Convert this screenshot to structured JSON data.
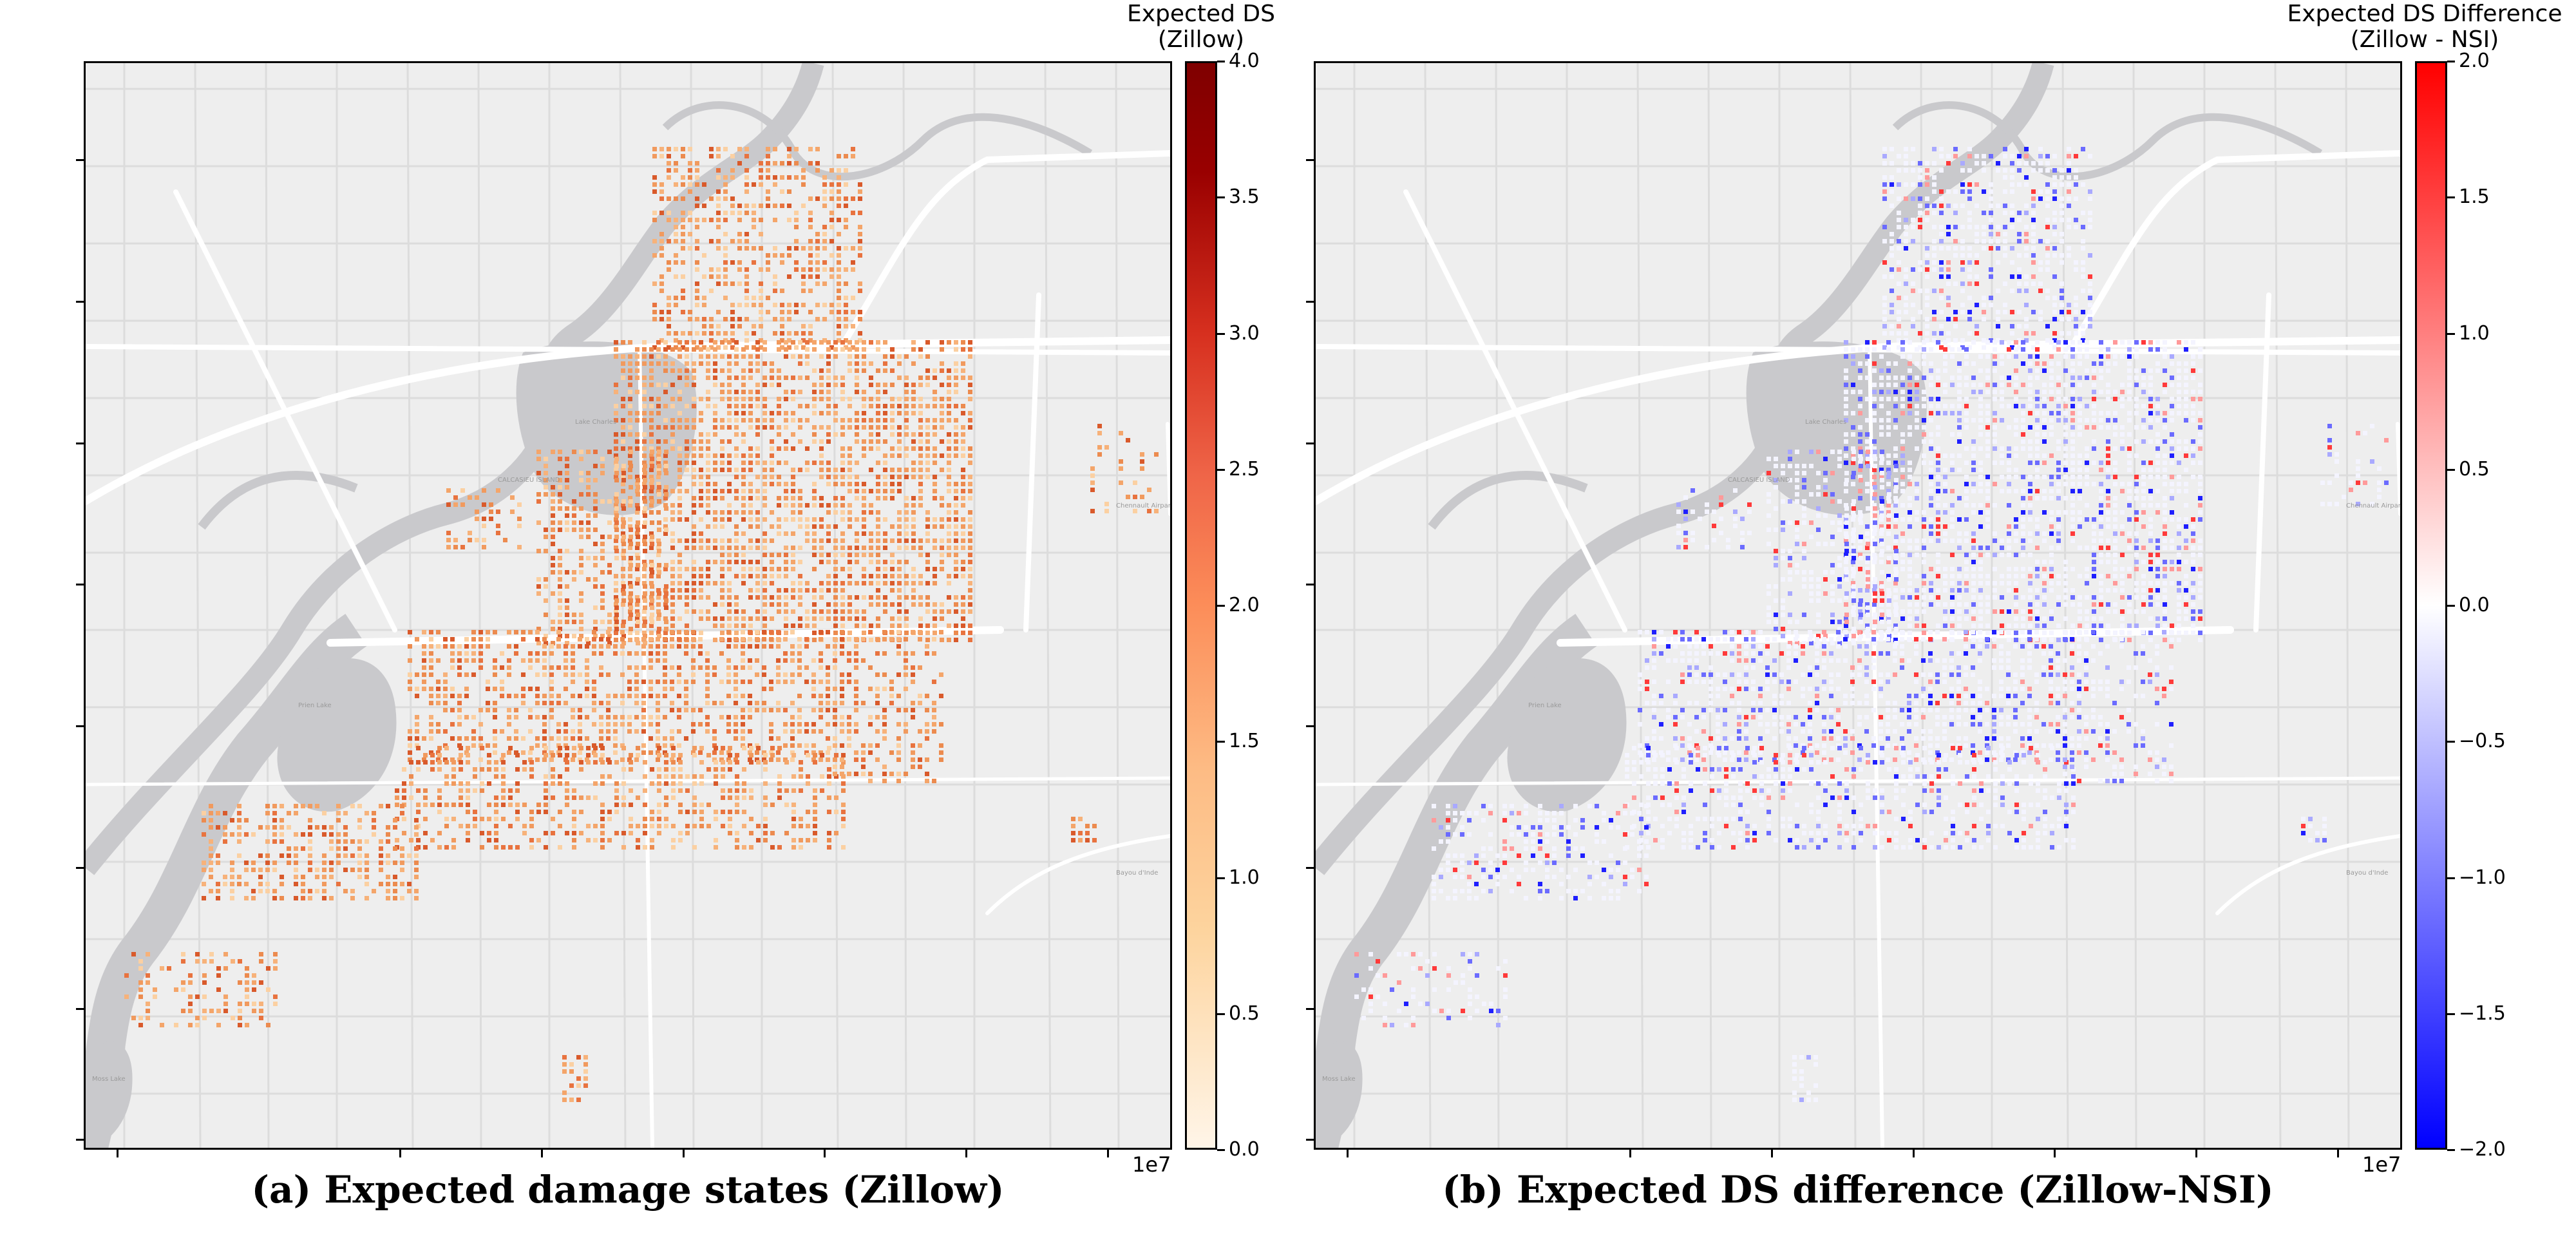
{
  "panels": [
    {
      "caption": "(a) Expected damage states (Zillow)",
      "colorbar_title_line1": "Expected DS",
      "colorbar_title_line2": "(Zillow)",
      "colorbar_ticks": [
        "4.0",
        "3.5",
        "3.0",
        "2.5",
        "2.0",
        "1.5",
        "1.0",
        "0.5",
        "0.0"
      ],
      "colorbar_range": [
        0,
        4
      ],
      "colorscale": [
        "#fff5e8",
        "#fdd49e",
        "#fdbb84",
        "#fc8d59",
        "#ef6548",
        "#d7301f",
        "#990000",
        "#7f0000"
      ],
      "axis_offset": "1e7",
      "dominant_color": "#f19a5e"
    },
    {
      "caption": "(b) Expected DS difference (Zillow-NSI)",
      "colorbar_title_line1": "Expected DS Difference",
      "colorbar_title_line2": "(Zillow - NSI)",
      "colorbar_ticks": [
        "2.0",
        "1.5",
        "1.0",
        "0.5",
        "0.0",
        "−0.5",
        "−1.0",
        "−1.5",
        "−2.0"
      ],
      "colorbar_range": [
        -2,
        2
      ],
      "colorscale": [
        "#0000ff",
        "#ffffff",
        "#ff0000"
      ],
      "axis_offset": "1e7",
      "dominant_color": "#ffffff"
    }
  ],
  "map_labels": [
    "Lake Charles",
    "CALCASIEU ISLAND",
    "Prien Lake",
    "Chennault Airpark",
    "Moss Lake",
    "Bayou d'Inde"
  ],
  "colors": {
    "basemap": "#eeeeee",
    "water": "#c9c9cc",
    "road": "#ffffff",
    "minor_road": "#dcdcdc"
  }
}
